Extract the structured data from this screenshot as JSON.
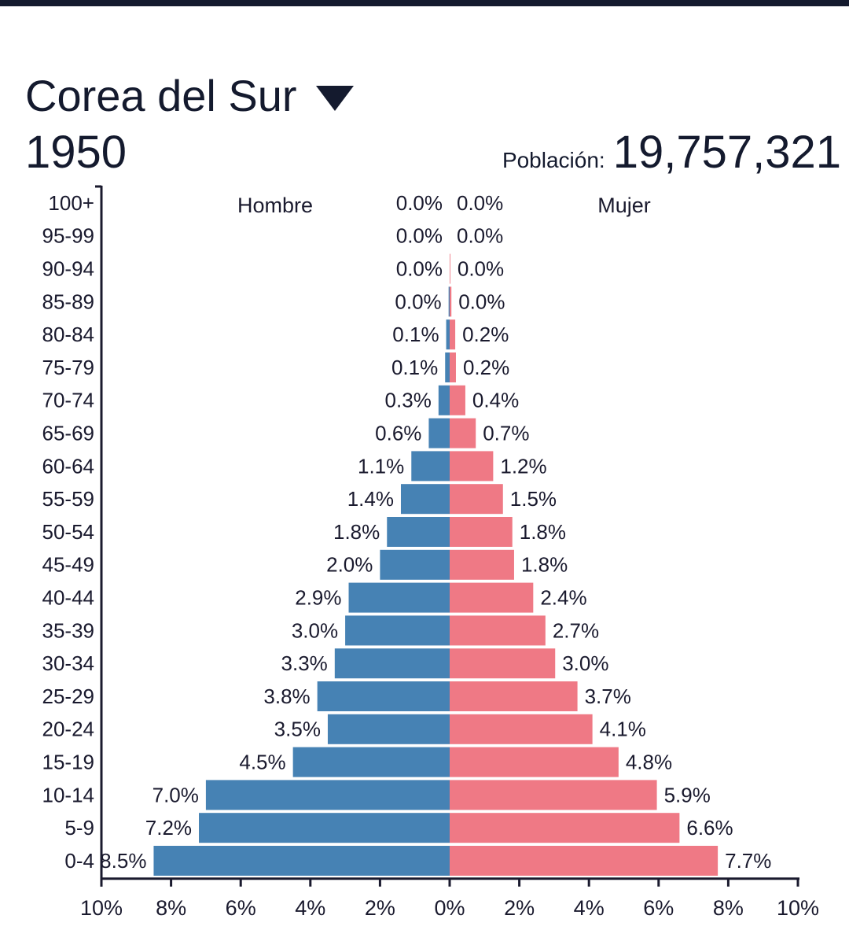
{
  "header": {
    "country": "Corea del Sur",
    "year": "1950",
    "population_label": "Población:",
    "population_value": "19,757,321"
  },
  "colors": {
    "male": "#4682b4",
    "female": "#ef7985",
    "text": "#1a1a2e"
  },
  "chart_data": {
    "type": "bar",
    "orientation": "horizontal-pyramid",
    "side_labels": [
      "Hombre",
      "Mujer"
    ],
    "categories": [
      "100+",
      "95-99",
      "90-94",
      "85-89",
      "80-84",
      "75-79",
      "70-74",
      "65-69",
      "60-64",
      "55-59",
      "50-54",
      "45-49",
      "40-44",
      "35-39",
      "30-34",
      "25-29",
      "20-24",
      "15-19",
      "10-14",
      "5-9",
      "0-4"
    ],
    "series": [
      {
        "name": "Hombre",
        "values": [
          0.0,
          0.0,
          0.0,
          0.03,
          0.1,
          0.13,
          0.32,
          0.6,
          1.1,
          1.4,
          1.8,
          2.0,
          2.9,
          3.0,
          3.3,
          3.8,
          3.5,
          4.5,
          7.0,
          7.2,
          8.5
        ],
        "labels": [
          "0.0%",
          "0.0%",
          "0.0%",
          "0.0%",
          "0.1%",
          "0.1%",
          "0.3%",
          "0.6%",
          "1.1%",
          "1.4%",
          "1.8%",
          "2.0%",
          "2.9%",
          "3.0%",
          "3.3%",
          "3.8%",
          "3.5%",
          "4.5%",
          "7.0%",
          "7.2%",
          "8.5%"
        ]
      },
      {
        "name": "Mujer",
        "values": [
          0.0,
          0.0,
          0.02,
          0.05,
          0.16,
          0.18,
          0.45,
          0.75,
          1.25,
          1.53,
          1.8,
          1.85,
          2.4,
          2.75,
          3.03,
          3.67,
          4.1,
          4.85,
          5.95,
          6.6,
          7.7
        ],
        "labels": [
          "0.0%",
          "0.0%",
          "0.0%",
          "0.0%",
          "0.2%",
          "0.2%",
          "0.4%",
          "0.7%",
          "1.2%",
          "1.5%",
          "1.8%",
          "1.8%",
          "2.4%",
          "2.7%",
          "3.0%",
          "3.7%",
          "4.1%",
          "4.8%",
          "5.9%",
          "6.6%",
          "7.7%"
        ]
      }
    ],
    "xlim": [
      -10,
      10
    ],
    "xticks": [
      "10%",
      "8%",
      "6%",
      "4%",
      "2%",
      "0%",
      "2%",
      "4%",
      "6%",
      "8%",
      "10%"
    ]
  }
}
